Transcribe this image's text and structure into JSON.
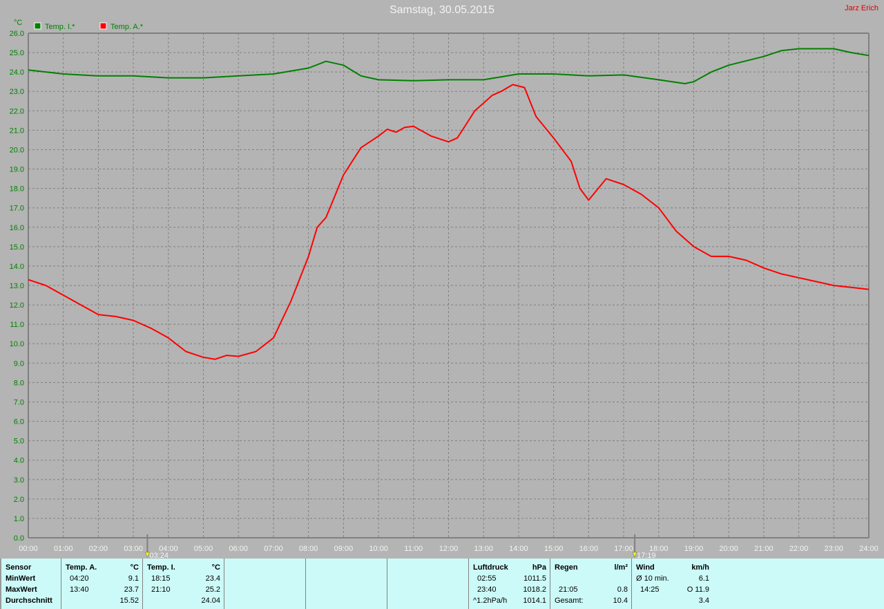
{
  "header": {
    "title": "Samstag, 30.05.2015",
    "author": "Jarz Erich"
  },
  "chart_data": {
    "type": "line",
    "title": "Samstag, 30.05.2015",
    "ylabel": "°C",
    "ylim": [
      0,
      26
    ],
    "xlim": [
      "00:00",
      "24:00"
    ],
    "grid": true,
    "legend_placement": "top-left",
    "x_ticks": [
      "00:00",
      "01:00",
      "02:00",
      "03:00",
      "04:00",
      "05:00",
      "06:00",
      "07:00",
      "08:00",
      "09:00",
      "10:00",
      "11:00",
      "12:00",
      "13:00",
      "14:00",
      "15:00",
      "16:00",
      "17:00",
      "18:00",
      "19:00",
      "20:00",
      "21:00",
      "22:00",
      "23:00",
      "24:00"
    ],
    "y_ticks": [
      "0.0",
      "1.0",
      "2.0",
      "3.0",
      "4.0",
      "5.0",
      "6.0",
      "7.0",
      "8.0",
      "9.0",
      "10.0",
      "11.0",
      "12.0",
      "13.0",
      "14.0",
      "15.0",
      "16.0",
      "17.0",
      "18.0",
      "19.0",
      "20.0",
      "21.0",
      "22.0",
      "23.0",
      "24.0",
      "25.0",
      "26.0"
    ],
    "markers": [
      "03:24",
      "17:19"
    ],
    "series": [
      {
        "name": "Temp. I.*",
        "color": "#008000",
        "points": [
          [
            "00:00",
            24.1
          ],
          [
            "01:00",
            23.9
          ],
          [
            "02:00",
            23.8
          ],
          [
            "03:00",
            23.8
          ],
          [
            "04:00",
            23.7
          ],
          [
            "05:00",
            23.7
          ],
          [
            "06:00",
            23.8
          ],
          [
            "07:00",
            23.9
          ],
          [
            "08:00",
            24.2
          ],
          [
            "08:30",
            24.55
          ],
          [
            "09:00",
            24.35
          ],
          [
            "09:30",
            23.8
          ],
          [
            "10:00",
            23.6
          ],
          [
            "11:00",
            23.55
          ],
          [
            "12:00",
            23.6
          ],
          [
            "13:00",
            23.6
          ],
          [
            "14:00",
            23.9
          ],
          [
            "15:00",
            23.9
          ],
          [
            "16:00",
            23.8
          ],
          [
            "17:00",
            23.85
          ],
          [
            "18:00",
            23.6
          ],
          [
            "18:45",
            23.4
          ],
          [
            "19:00",
            23.5
          ],
          [
            "19:30",
            24.0
          ],
          [
            "20:00",
            24.35
          ],
          [
            "21:00",
            24.8
          ],
          [
            "21:30",
            25.1
          ],
          [
            "22:00",
            25.2
          ],
          [
            "23:00",
            25.2
          ],
          [
            "23:30",
            25.0
          ],
          [
            "24:00",
            24.85
          ]
        ]
      },
      {
        "name": "Temp. A.*",
        "color": "#ff0000",
        "points": [
          [
            "00:00",
            13.3
          ],
          [
            "00:30",
            13.0
          ],
          [
            "01:00",
            12.5
          ],
          [
            "01:30",
            12.0
          ],
          [
            "02:00",
            11.5
          ],
          [
            "02:30",
            11.4
          ],
          [
            "03:00",
            11.2
          ],
          [
            "03:30",
            10.8
          ],
          [
            "04:00",
            10.3
          ],
          [
            "04:30",
            9.6
          ],
          [
            "05:00",
            9.3
          ],
          [
            "05:20",
            9.2
          ],
          [
            "05:40",
            9.4
          ],
          [
            "06:00",
            9.35
          ],
          [
            "06:30",
            9.6
          ],
          [
            "07:00",
            10.3
          ],
          [
            "07:30",
            12.2
          ],
          [
            "08:00",
            14.5
          ],
          [
            "08:15",
            16.0
          ],
          [
            "08:30",
            16.5
          ],
          [
            "09:00",
            18.7
          ],
          [
            "09:30",
            20.1
          ],
          [
            "10:00",
            20.7
          ],
          [
            "10:15",
            21.05
          ],
          [
            "10:30",
            20.9
          ],
          [
            "10:45",
            21.15
          ],
          [
            "11:00",
            21.2
          ],
          [
            "11:30",
            20.7
          ],
          [
            "12:00",
            20.4
          ],
          [
            "12:15",
            20.6
          ],
          [
            "12:30",
            21.3
          ],
          [
            "12:45",
            22.0
          ],
          [
            "13:00",
            22.4
          ],
          [
            "13:15",
            22.8
          ],
          [
            "13:30",
            23.0
          ],
          [
            "13:50",
            23.35
          ],
          [
            "14:10",
            23.2
          ],
          [
            "14:30",
            21.7
          ],
          [
            "15:00",
            20.6
          ],
          [
            "15:30",
            19.4
          ],
          [
            "15:45",
            18.0
          ],
          [
            "16:00",
            17.4
          ],
          [
            "16:30",
            18.5
          ],
          [
            "17:00",
            18.2
          ],
          [
            "17:30",
            17.7
          ],
          [
            "18:00",
            17.0
          ],
          [
            "18:30",
            15.8
          ],
          [
            "19:00",
            15.0
          ],
          [
            "19:30",
            14.5
          ],
          [
            "20:00",
            14.5
          ],
          [
            "20:30",
            14.3
          ],
          [
            "21:00",
            13.9
          ],
          [
            "21:30",
            13.6
          ],
          [
            "22:00",
            13.4
          ],
          [
            "22:30",
            13.2
          ],
          [
            "23:00",
            13.0
          ],
          [
            "23:30",
            12.9
          ],
          [
            "24:00",
            12.8
          ]
        ]
      }
    ]
  },
  "table": {
    "row_labels": [
      "Sensor",
      "MinWert",
      "MaxWert",
      "Durchschnitt"
    ],
    "temp_a": {
      "header": "Temp. A.",
      "unit": "°C",
      "min_time": "04:20",
      "min": "9.1",
      "max_time": "13:40",
      "max": "23.7",
      "avg": "15.52"
    },
    "temp_i": {
      "header": "Temp. I.",
      "unit": "°C",
      "min_time": "18:15",
      "min": "23.4",
      "max_time": "21:10",
      "max": "25.2",
      "avg": "24.04"
    },
    "luftdruck": {
      "header": "Luftdruck",
      "unit": "hPa",
      "min_time": "02:55",
      "min": "1011.5",
      "max_time": "23:40",
      "max": "1018.2",
      "trend": "^1.2hPa/h",
      "avg": "1014.1"
    },
    "regen": {
      "header": "Regen",
      "unit": "l/m²",
      "time": "21:05",
      "value": "0.8",
      "total_label": "Gesamt:",
      "total": "10.4"
    },
    "wind": {
      "header": "Wind",
      "unit": "km/h",
      "avg_label": "Ø 10 min.",
      "avg": "6.1",
      "max_time": "14:25",
      "max": "O 11.9",
      "value": "3.4"
    }
  }
}
